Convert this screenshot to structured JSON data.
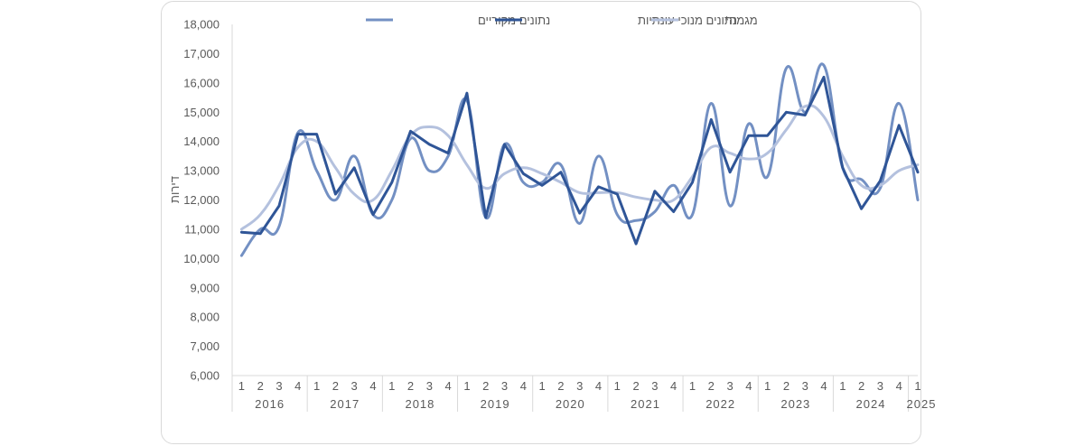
{
  "chart_data": {
    "type": "line",
    "title": "",
    "xlabel": "",
    "ylabel": "דירות",
    "ylim": [
      6000,
      18000
    ],
    "y_ticks": [
      6000,
      7000,
      8000,
      9000,
      10000,
      11000,
      12000,
      13000,
      14000,
      15000,
      16000,
      17000,
      18000
    ],
    "y_tick_labels": [
      "6,000",
      "7,000",
      "8,000",
      "9,000",
      "10,000",
      "11,000",
      "12,000",
      "13,000",
      "14,000",
      "15,000",
      "16,000",
      "17,000",
      "18,000"
    ],
    "grid": false,
    "legend_position": "top",
    "quarter_labels": [
      "1",
      "2",
      "3",
      "4",
      "1",
      "2",
      "3",
      "4",
      "1",
      "2",
      "3",
      "4",
      "1",
      "2",
      "3",
      "4",
      "1",
      "2",
      "3",
      "4",
      "1",
      "2",
      "3",
      "4",
      "1",
      "2",
      "3",
      "4",
      "1",
      "2",
      "3",
      "4",
      "1",
      "2",
      "3",
      "4",
      "1"
    ],
    "year_labels": [
      "2016",
      "2017",
      "2018",
      "2019",
      "2020",
      "2021",
      "2022",
      "2023",
      "2024",
      "2025"
    ],
    "series": [
      {
        "name": "נתונים מקוריים",
        "color": "#7390c3",
        "smooth": true,
        "values": [
          10100,
          11000,
          11100,
          14300,
          13000,
          12000,
          13500,
          11500,
          12000,
          14100,
          13000,
          13500,
          15400,
          11400,
          13900,
          12600,
          12600,
          13200,
          11200,
          13500,
          11500,
          11300,
          11600,
          12500,
          11500,
          15300,
          11800,
          14600,
          12800,
          16500,
          15000,
          16600,
          13100,
          12700,
          12400,
          15300,
          12000
        ]
      },
      {
        "name": "נתונים מנוכי עונתיות",
        "color": "#2f5597",
        "smooth": false,
        "values": [
          10900,
          10850,
          11800,
          14250,
          14250,
          12200,
          13100,
          11500,
          12600,
          14350,
          13900,
          13600,
          15650,
          11400,
          13900,
          12900,
          12500,
          12950,
          11550,
          12450,
          12200,
          10500,
          12300,
          11600,
          12600,
          14750,
          12950,
          14200,
          14200,
          15000,
          14900,
          16200,
          13100,
          11700,
          12650,
          14550,
          12950
        ]
      },
      {
        "name": "מגמה*",
        "color": "#b4c1de",
        "smooth": true,
        "values": [
          11000,
          11500,
          12500,
          13800,
          14000,
          13100,
          12200,
          12000,
          13000,
          14200,
          14500,
          14200,
          13200,
          12400,
          12900,
          13100,
          12900,
          12600,
          12250,
          12250,
          12250,
          12100,
          12000,
          12000,
          12800,
          13800,
          13600,
          13400,
          13600,
          14400,
          15200,
          14850,
          13500,
          12500,
          12500,
          13000,
          13200
        ]
      }
    ]
  }
}
